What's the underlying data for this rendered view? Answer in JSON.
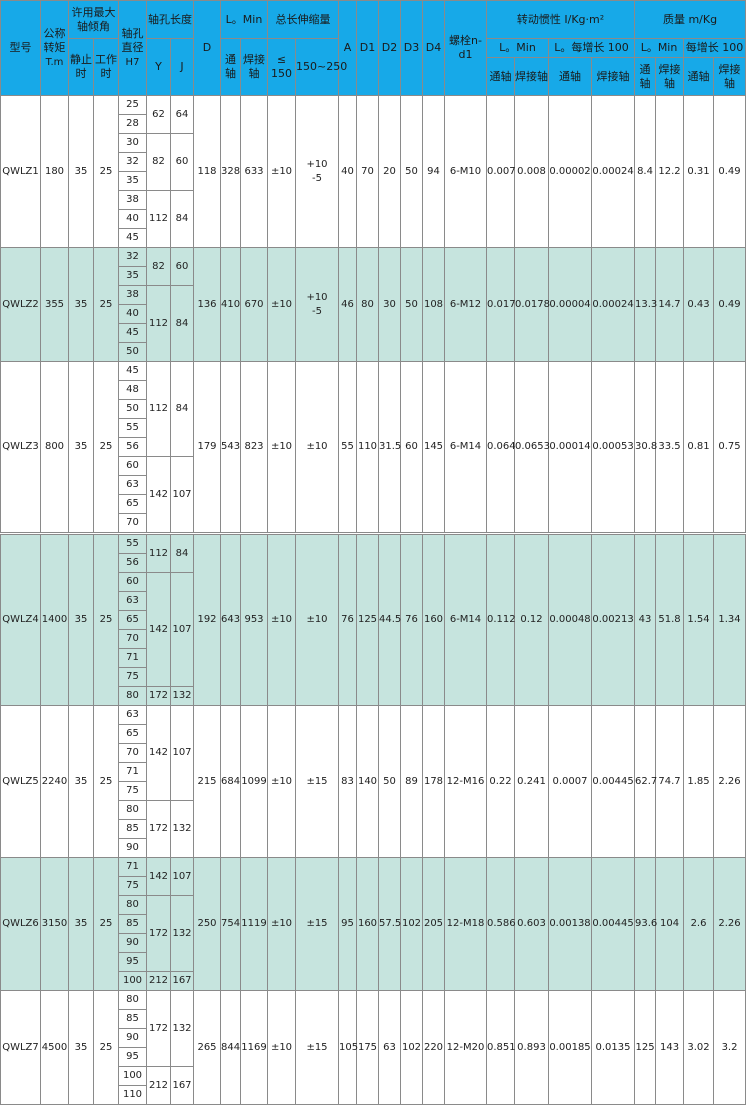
{
  "header": {
    "model": "型号",
    "torque": "公称转矩",
    "torque_unit": "T.m",
    "angle": "许用最大轴倾角",
    "static": "静止时",
    "working": "工作时",
    "bore": "轴孔直径",
    "bore_unit": "H7",
    "bore_length": "轴孔长度",
    "y": "Y",
    "j": "J",
    "d": "D",
    "l0_min": "L。Min",
    "through_shaft": "通轴",
    "welded_shaft": "焊接轴",
    "stretch": "总长伸缩量",
    "le150": "≤ 150",
    "r150_250": "150~250",
    "a": "A",
    "d1": "D1",
    "d2": "D2",
    "d3": "D3",
    "d4": "D4",
    "bolt": "螺栓n-d1",
    "inertia": "转动惯性 I/Kg·m²",
    "l0_min_short": "L。Min",
    "per100": "L。每增长 100",
    "mass": "质量 m/Kg",
    "mass_per100": "每增长 100"
  },
  "rows": [
    {
      "model": "QWLZ1",
      "torque": "180",
      "static": "35",
      "working": "25",
      "bores": [
        "25",
        "28",
        "30",
        "32",
        "35",
        "38",
        "40",
        "45"
      ],
      "yj": [
        {
          "y": "62",
          "j": "64",
          "n": 2
        },
        {
          "y": "82",
          "j": "60",
          "n": 3
        },
        {
          "y": "112",
          "j": "84",
          "n": 3
        }
      ],
      "vals": [
        "118",
        "328",
        "633",
        "±10",
        "+10\n-5",
        "40",
        "70",
        "20",
        "50",
        "94",
        "6-M10",
        "0.007",
        "0.008",
        "0.00002",
        "0.00024",
        "8.4",
        "12.2",
        "0.31",
        "0.49"
      ]
    },
    {
      "model": "QWLZ2",
      "torque": "355",
      "static": "35",
      "working": "25",
      "bores": [
        "32",
        "35",
        "38",
        "40",
        "45",
        "50"
      ],
      "yj": [
        {
          "y": "82",
          "j": "60",
          "n": 2
        },
        {
          "y": "112",
          "j": "84",
          "n": 4
        }
      ],
      "vals": [
        "136",
        "410",
        "670",
        "±10",
        "+10\n-5",
        "46",
        "80",
        "30",
        "50",
        "108",
        "6-M12",
        "0.017",
        "0.0178",
        "0.00004",
        "0.00024",
        "13.3",
        "14.7",
        "0.43",
        "0.49"
      ]
    },
    {
      "model": "QWLZ3",
      "torque": "800",
      "static": "35",
      "working": "25",
      "bores": [
        "45",
        "48",
        "50",
        "55",
        "56",
        "60",
        "63",
        "65",
        "70"
      ],
      "yj": [
        {
          "y": "112",
          "j": "84",
          "n": 5
        },
        {
          "y": "142",
          "j": "107",
          "n": 4
        }
      ],
      "vals": [
        "179",
        "543",
        "823",
        "±10",
        "±10",
        "55",
        "110",
        "31.5",
        "60",
        "145",
        "6-M14",
        "0.064",
        "0.0653",
        "0.00014",
        "0.00053",
        "30.8",
        "33.5",
        "0.81",
        "0.75"
      ]
    },
    {
      "model": "QWLZ4",
      "torque": "1400",
      "static": "35",
      "working": "25",
      "bores": [
        "55",
        "56",
        "60",
        "63",
        "65",
        "70",
        "71",
        "75",
        "80"
      ],
      "yj": [
        {
          "y": "112",
          "j": "84",
          "n": 2
        },
        {
          "y": "142",
          "j": "107",
          "n": 6
        },
        {
          "y": "172",
          "j": "132",
          "n": 1
        }
      ],
      "vals": [
        "192",
        "643",
        "953",
        "±10",
        "±10",
        "76",
        "125",
        "44.5",
        "76",
        "160",
        "6-M14",
        "0.112",
        "0.12",
        "0.00048",
        "0.00213",
        "43",
        "51.8",
        "1.54",
        "1.34"
      ]
    },
    {
      "model": "QWLZ5",
      "torque": "2240",
      "static": "35",
      "working": "25",
      "bores": [
        "63",
        "65",
        "70",
        "71",
        "75",
        "80",
        "85",
        "90"
      ],
      "yj": [
        {
          "y": "142",
          "j": "107",
          "n": 5
        },
        {
          "y": "172",
          "j": "132",
          "n": 3
        }
      ],
      "vals": [
        "215",
        "684",
        "1099",
        "±10",
        "±15",
        "83",
        "140",
        "50",
        "89",
        "178",
        "12-M16",
        "0.22",
        "0.241",
        "0.0007",
        "0.00445",
        "62.7",
        "74.7",
        "1.85",
        "2.26"
      ]
    },
    {
      "model": "QWLZ6",
      "torque": "3150",
      "static": "35",
      "working": "25",
      "bores": [
        "71",
        "75",
        "80",
        "85",
        "90",
        "95",
        "100"
      ],
      "yj": [
        {
          "y": "142",
          "j": "107",
          "n": 2
        },
        {
          "y": "172",
          "j": "132",
          "n": 4
        },
        {
          "y": "212",
          "j": "167",
          "n": 1
        }
      ],
      "vals": [
        "250",
        "754",
        "1119",
        "±10",
        "±15",
        "95",
        "160",
        "57.5",
        "102",
        "205",
        "12-M18",
        "0.586",
        "0.603",
        "0.00138",
        "0.00445",
        "93.6",
        "104",
        "2.6",
        "2.26"
      ]
    },
    {
      "model": "QWLZ7",
      "torque": "4500",
      "static": "35",
      "working": "25",
      "bores": [
        "80",
        "85",
        "90",
        "95",
        "100",
        "110"
      ],
      "yj": [
        {
          "y": "172",
          "j": "132",
          "n": 4
        },
        {
          "y": "212",
          "j": "167",
          "n": 2
        }
      ],
      "vals": [
        "265",
        "844",
        "1169",
        "±10",
        "±15",
        "105",
        "175",
        "63",
        "102",
        "220",
        "12-M20",
        "0.851",
        "0.893",
        "0.00185",
        "0.0135",
        "125",
        "143",
        "3.02",
        "3.2"
      ]
    }
  ],
  "colors": {
    "header": "#17a9e8",
    "alt_row": "#c6e4de",
    "border": "#8a8a8a"
  }
}
